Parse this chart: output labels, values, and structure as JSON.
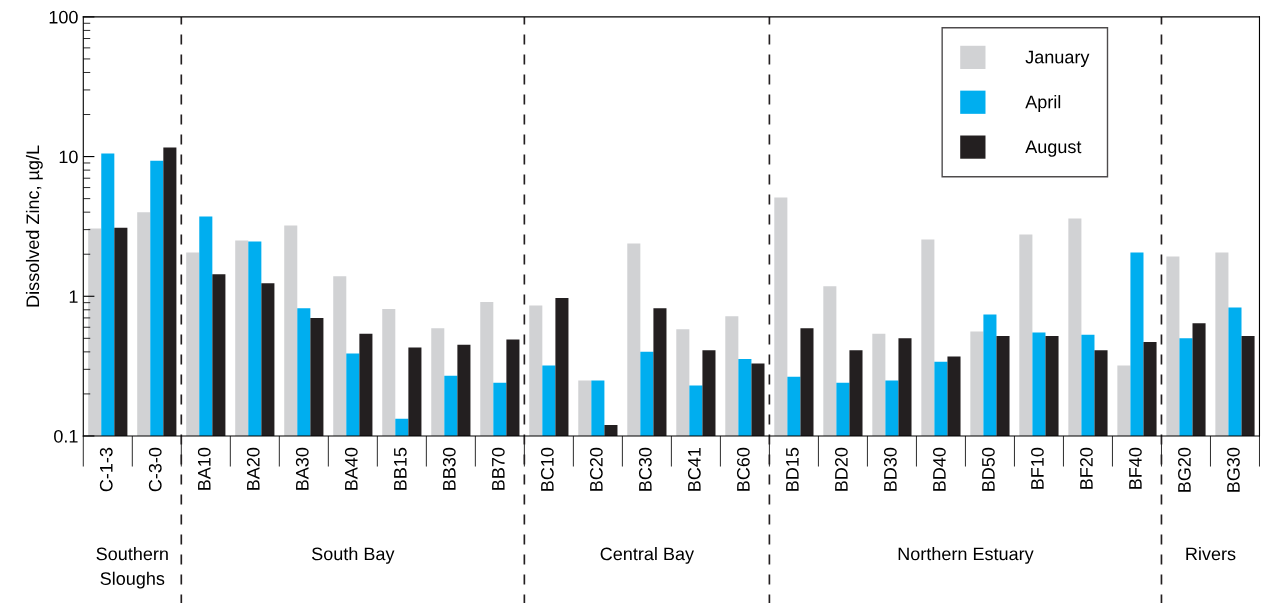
{
  "chart_data": {
    "type": "bar",
    "ylabel": "Dissolved Zinc, µg/L",
    "categories": [
      "C-1-3",
      "C-3-0",
      "BA10",
      "BA20",
      "BA30",
      "BA40",
      "BB15",
      "BB30",
      "BB70",
      "BC10",
      "BC20",
      "BC30",
      "BC41",
      "BC60",
      "BD15",
      "BD20",
      "BD30",
      "BD40",
      "BD50",
      "BF10",
      "BF20",
      "BF40",
      "BG20",
      "BG30"
    ],
    "series": [
      {
        "name": "January",
        "color": "#d1d2d4",
        "values": [
          3.06,
          4.0,
          2.06,
          2.51,
          3.21,
          1.39,
          0.81,
          0.59,
          0.91,
          0.86,
          0.25,
          2.39,
          0.58,
          0.72,
          5.1,
          1.18,
          0.54,
          2.55,
          0.56,
          2.77,
          3.6,
          0.32,
          1.93,
          2.06
        ]
      },
      {
        "name": "April",
        "color": "#00aeef",
        "values": [
          10.5,
          9.35,
          3.72,
          2.47,
          0.82,
          0.39,
          0.133,
          0.27,
          0.24,
          0.32,
          0.25,
          0.4,
          0.23,
          0.355,
          0.265,
          0.24,
          0.25,
          0.34,
          0.74,
          0.55,
          0.53,
          2.06,
          0.5,
          0.83
        ]
      },
      {
        "name": "August",
        "color": "#231f20",
        "values": [
          3.1,
          11.6,
          1.44,
          1.24,
          0.7,
          0.54,
          0.43,
          0.45,
          0.49,
          0.97,
          0.12,
          0.82,
          0.41,
          0.33,
          0.59,
          0.41,
          0.5,
          0.37,
          0.52,
          0.52,
          0.41,
          0.47,
          0.64,
          0.52
        ]
      }
    ],
    "log": "y",
    "ylim": [
      0.1,
      100
    ],
    "yticks": [
      0.1,
      1,
      10,
      100
    ],
    "annotations": [
      "Southern\nSloughs",
      "South Bay",
      "Central Bay",
      "Northern Estuary",
      "Rivers"
    ],
    "legend": "top right",
    "grid": false
  }
}
